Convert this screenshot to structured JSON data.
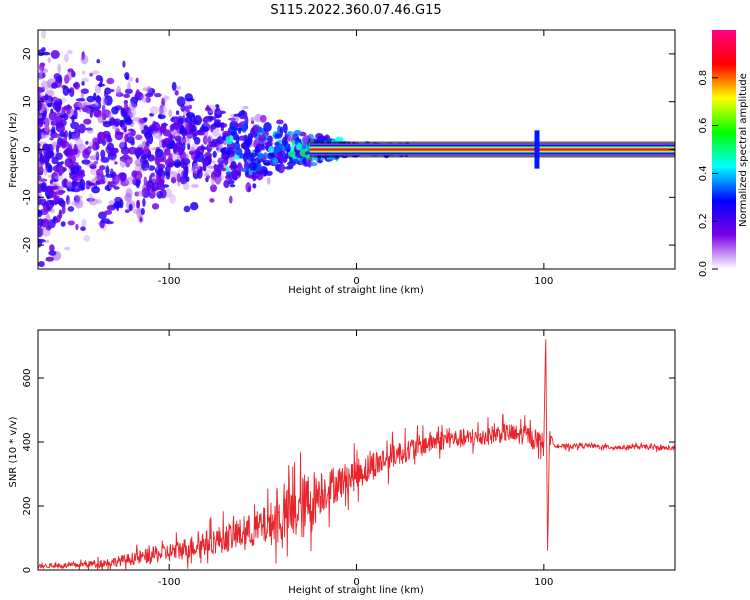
{
  "title": "S115.2022.360.07.46.G15",
  "chart_data": [
    {
      "type": "heatmap",
      "xlabel": "Height of straight line (km)",
      "ylabel": "Frequency (Hz)",
      "xlim": [
        -170,
        170
      ],
      "ylim": [
        -25,
        25
      ],
      "xticks": [
        -100,
        0,
        100
      ],
      "yticks": [
        -20,
        -10,
        0,
        10,
        20
      ],
      "grid": false,
      "colorbar": {
        "label": "Normalized spectral amplitude",
        "range": [
          0.0,
          1.0
        ],
        "ticks": [
          0.0,
          0.2,
          0.4,
          0.6,
          0.8
        ],
        "colors": [
          "#ffffff",
          "#7a00e6",
          "#0000ff",
          "#00ffff",
          "#00ff00",
          "#ffff00",
          "#ff0000",
          "#ff0080"
        ]
      },
      "dominant_line": {
        "frequency_hz": 0,
        "x_start": -25,
        "x_end": 170,
        "amplitude": 0.95
      },
      "noise_spread_hz": [
        {
          "x": -170,
          "half_width": 25
        },
        {
          "x": -100,
          "half_width": 15
        },
        {
          "x": -60,
          "half_width": 10
        },
        {
          "x": -30,
          "half_width": 4
        },
        {
          "x": 0,
          "half_width": 1
        }
      ]
    },
    {
      "type": "line",
      "xlabel": "Height of straight line (km)",
      "ylabel": "SNR (10 * v/v)",
      "xlim": [
        -170,
        170
      ],
      "ylim": [
        0,
        750
      ],
      "xticks": [
        -100,
        0,
        100
      ],
      "yticks": [
        0,
        200,
        400,
        600
      ],
      "grid": false,
      "series": [
        {
          "color": "#e8242a",
          "x": [
            -170,
            -150,
            -130,
            -110,
            -100,
            -90,
            -80,
            -70,
            -60,
            -50,
            -40,
            -30,
            -25,
            -20,
            -10,
            0,
            10,
            20,
            30,
            40,
            50,
            60,
            70,
            80,
            85,
            90,
            95,
            100,
            101,
            102,
            103,
            105,
            110,
            120,
            130,
            140,
            150,
            160,
            170
          ],
          "y": [
            12,
            15,
            25,
            45,
            55,
            70,
            85,
            100,
            115,
            135,
            160,
            190,
            210,
            240,
            270,
            300,
            330,
            360,
            380,
            400,
            410,
            410,
            420,
            430,
            420,
            425,
            410,
            400,
            740,
            60,
            420,
            395,
            385,
            390,
            385,
            383,
            385,
            382,
            380
          ],
          "spread": [
            6,
            8,
            15,
            25,
            30,
            35,
            40,
            45,
            50,
            60,
            80,
            100,
            110,
            70,
            55,
            50,
            45,
            40,
            35,
            35,
            30,
            30,
            30,
            30,
            35,
            30,
            30,
            30,
            0,
            0,
            20,
            10,
            8,
            7,
            7,
            7,
            7,
            7,
            7
          ]
        }
      ]
    }
  ]
}
